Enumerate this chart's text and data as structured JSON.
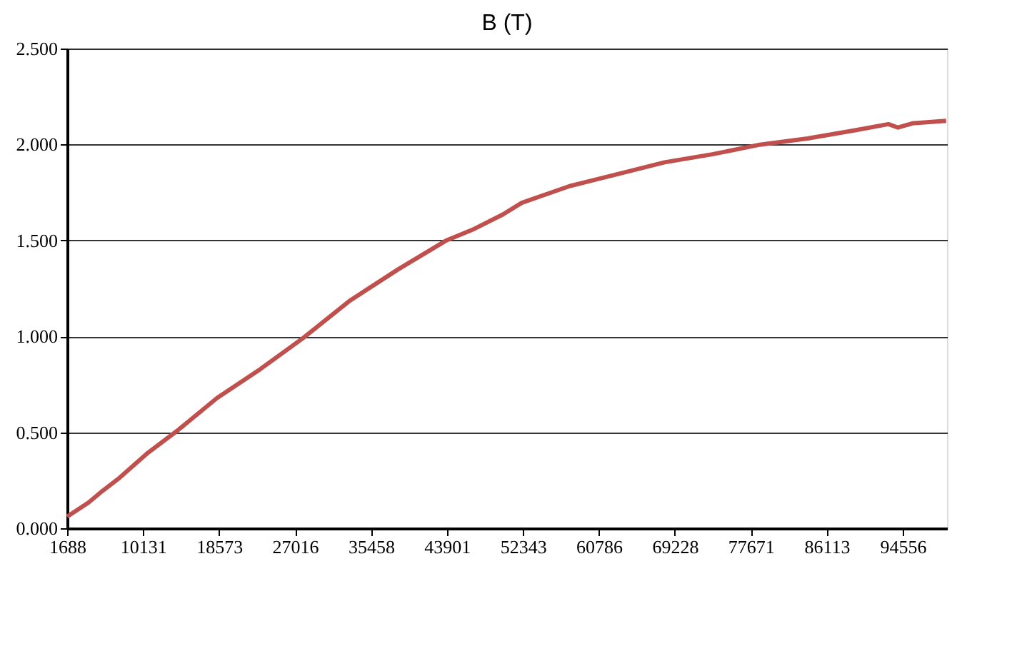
{
  "chart_data": {
    "type": "line",
    "title": "B (T)",
    "x": [
      1688,
      4069,
      5657,
      7514,
      10689,
      13864,
      18357,
      23119,
      27882,
      33168,
      38471,
      43757,
      46932,
      50107,
      52218,
      57520,
      62806,
      68093,
      73395,
      78682,
      83968,
      89270,
      92969,
      94033,
      95620,
      99384
    ],
    "series": [
      {
        "color": "#c0504d",
        "values": [
          0.06,
          0.134,
          0.196,
          0.263,
          0.394,
          0.506,
          0.679,
          0.828,
          0.99,
          1.188,
          1.349,
          1.498,
          1.56,
          1.635,
          1.696,
          1.783,
          1.845,
          1.907,
          1.949,
          1.999,
          2.031,
          2.074,
          2.106,
          2.088,
          2.11,
          2.123
        ]
      }
    ],
    "xlim": [
      1688,
      99480
    ],
    "xticks": [
      1688,
      10131,
      18573,
      27016,
      35458,
      43901,
      52343,
      60786,
      69228,
      77671,
      86113,
      94556
    ],
    "ylim": [
      0,
      2.5
    ],
    "yticks": [
      {
        "value": 0,
        "label": "0.000"
      },
      {
        "value": 0.5,
        "label": "0.500"
      },
      {
        "value": 1,
        "label": "1.000"
      },
      {
        "value": 1.5,
        "label": "1.500"
      },
      {
        "value": 2,
        "label": "2.000"
      },
      {
        "value": 2.5,
        "label": "2.500"
      }
    ],
    "grid": "y",
    "legend": false,
    "marker": "none",
    "line_style": "solid"
  }
}
